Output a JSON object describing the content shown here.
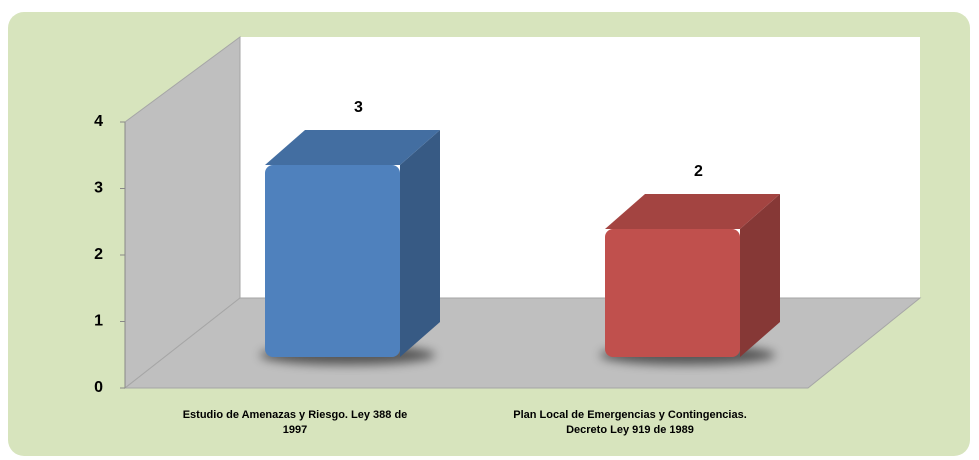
{
  "chart_data": {
    "type": "bar3d",
    "categories": [
      "Estudio de Amenazas y Riesgo. Ley 388 de 1997",
      "Plan Local de Emergencias y Contingencias. Decreto Ley 919 de 1989"
    ],
    "series": [
      {
        "values": [
          3,
          2
        ]
      }
    ],
    "colors": [
      "#4f81bd",
      "#c0504d"
    ],
    "ylim": [
      0,
      4
    ],
    "yticks": [
      0,
      1,
      2,
      3,
      4
    ]
  }
}
